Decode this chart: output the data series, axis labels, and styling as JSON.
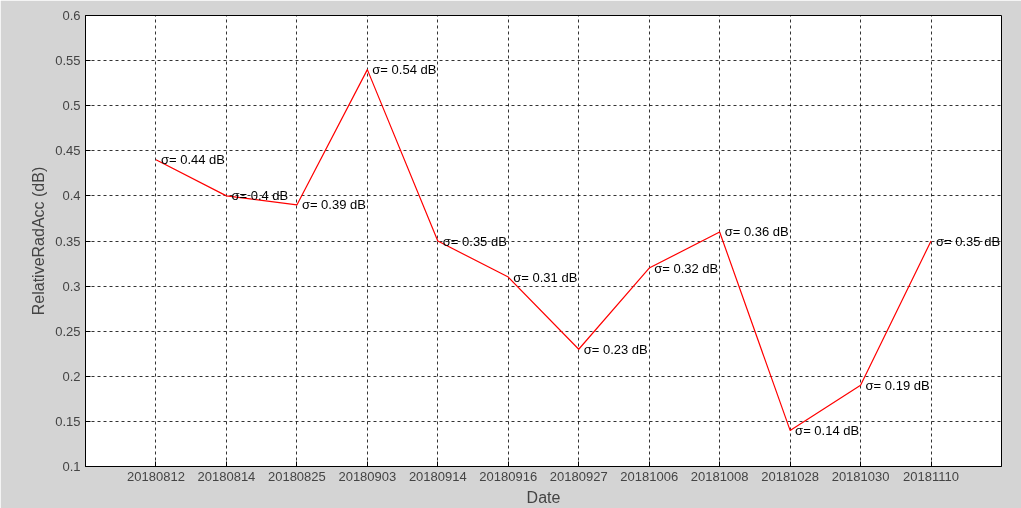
{
  "chart_data": {
    "type": "line",
    "xlabel": "Date",
    "ylabel": "RelativeRadAcc (dB)",
    "categories": [
      "20180812",
      "20180814",
      "20180825",
      "20180903",
      "20180914",
      "20180916",
      "20180927",
      "20181006",
      "20181008",
      "20181028",
      "20181030",
      "20181110"
    ],
    "series": [
      {
        "color": "#ff0000",
        "values": [
          0.44,
          0.4,
          0.39,
          0.54,
          0.35,
          0.31,
          0.23,
          0.32,
          0.36,
          0.14,
          0.19,
          0.35
        ],
        "value_labels": [
          "σ= 0.44 dB",
          "σ= 0.4 dB",
          "σ= 0.39 dB",
          "σ= 0.54 dB",
          "σ= 0.35 dB",
          "σ= 0.31 dB",
          "σ= 0.23 dB",
          "σ= 0.32 dB",
          "σ= 0.36 dB",
          "σ= 0.14 dB",
          "σ= 0.19 dB",
          "σ= 0.35 dB"
        ]
      }
    ],
    "ylim": [
      0.1,
      0.6
    ],
    "yticks": [
      0.1,
      0.15,
      0.2,
      0.25,
      0.3,
      0.35,
      0.4,
      0.45,
      0.5,
      0.55,
      0.6
    ],
    "grid": true,
    "line_style": "solid",
    "marker": "none"
  }
}
